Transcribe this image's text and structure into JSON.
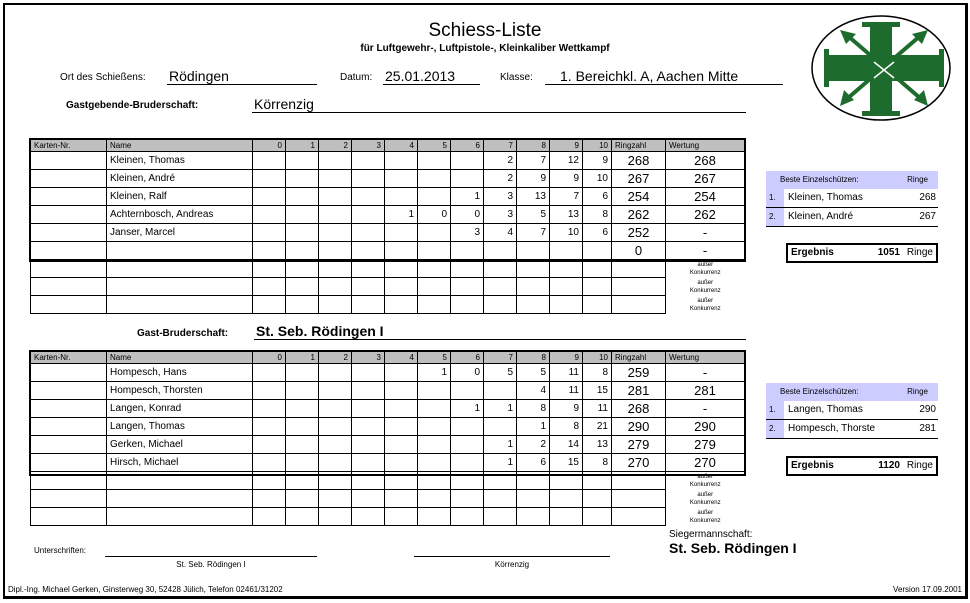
{
  "header": {
    "title": "Schiess-Liste",
    "subtitle": "für Luftgewehr-, Luftpistole-, Kleinkaliber Wettkampf",
    "ort_label": "Ort des Schießens:",
    "ort_value": "Rödingen",
    "datum_label": "Datum:",
    "datum_value": "25.01.2013",
    "klasse_label": "Klasse:",
    "klasse_value": "1. Bereichkl. A, Aachen Mitte"
  },
  "logo": {
    "icon": "green-cross-with-crossed-arrows-emblem",
    "color": "#1e6b2e"
  },
  "columns": [
    "Karten-Nr.",
    "Name",
    "0",
    "1",
    "2",
    "3",
    "4",
    "5",
    "6",
    "7",
    "8",
    "9",
    "10",
    "Ringzahl",
    "Wertung"
  ],
  "outside_competition_note": [
    "außer",
    "Konkurrenz"
  ],
  "team1": {
    "label": "Gastgebende-Bruderschaft:",
    "name": "Körrenzig",
    "rows": [
      {
        "karte": "",
        "name": "Kleinen, Thomas",
        "counts": [
          "",
          "",
          "",
          "",
          "",
          "",
          "",
          "2",
          "7",
          "12",
          "9"
        ],
        "ringzahl": "268",
        "wertung": "268"
      },
      {
        "karte": "",
        "name": "Kleinen, André",
        "counts": [
          "",
          "",
          "",
          "",
          "",
          "",
          "",
          "2",
          "9",
          "9",
          "10"
        ],
        "ringzahl": "267",
        "wertung": "267"
      },
      {
        "karte": "",
        "name": "Kleinen, Ralf",
        "counts": [
          "",
          "",
          "",
          "",
          "",
          "",
          "1",
          "3",
          "13",
          "7",
          "6"
        ],
        "ringzahl": "254",
        "wertung": "254"
      },
      {
        "karte": "",
        "name": "Achternbosch, Andreas",
        "counts": [
          "",
          "",
          "",
          "",
          "1",
          "0",
          "0",
          "3",
          "5",
          "13",
          "8"
        ],
        "ringzahl": "262",
        "wertung": "262"
      },
      {
        "karte": "",
        "name": "Janser, Marcel",
        "counts": [
          "",
          "",
          "",
          "",
          "",
          "",
          "3",
          "4",
          "7",
          "10",
          "6"
        ],
        "ringzahl": "252",
        "wertung": "-"
      },
      {
        "karte": "",
        "name": "",
        "counts": [
          "",
          "",
          "",
          "",
          "",
          "",
          "",
          "",
          "",
          "",
          ""
        ],
        "ringzahl": "0",
        "wertung": "-"
      }
    ],
    "best": {
      "header": "Beste Einzelschützen:",
      "header_unit": "Ringe",
      "rows": [
        {
          "rank": "1.",
          "name": "Kleinen, Thomas",
          "rings": "268"
        },
        {
          "rank": "2.",
          "name": "Kleinen, André",
          "rings": "267"
        }
      ]
    },
    "result": {
      "label": "Ergebnis",
      "value": "1051",
      "unit": "Ringe"
    }
  },
  "team2": {
    "label": "Gast-Bruderschaft:",
    "name": "St. Seb. Rödingen I",
    "rows": [
      {
        "karte": "",
        "name": "Hompesch, Hans",
        "counts": [
          "",
          "",
          "",
          "",
          "",
          "1",
          "0",
          "5",
          "5",
          "11",
          "8"
        ],
        "ringzahl": "259",
        "wertung": "-"
      },
      {
        "karte": "",
        "name": "Hompesch, Thorsten",
        "counts": [
          "",
          "",
          "",
          "",
          "",
          "",
          "",
          "",
          "4",
          "11",
          "15"
        ],
        "ringzahl": "281",
        "wertung": "281"
      },
      {
        "karte": "",
        "name": "Langen, Konrad",
        "counts": [
          "",
          "",
          "",
          "",
          "",
          "",
          "1",
          "1",
          "8",
          "9",
          "11"
        ],
        "ringzahl": "268",
        "wertung": "-"
      },
      {
        "karte": "",
        "name": "Langen, Thomas",
        "counts": [
          "",
          "",
          "",
          "",
          "",
          "",
          "",
          "",
          "1",
          "8",
          "21"
        ],
        "ringzahl": "290",
        "wertung": "290"
      },
      {
        "karte": "",
        "name": "Gerken, Michael",
        "counts": [
          "",
          "",
          "",
          "",
          "",
          "",
          "",
          "1",
          "2",
          "14",
          "13"
        ],
        "ringzahl": "279",
        "wertung": "279"
      },
      {
        "karte": "",
        "name": "Hirsch, Michael",
        "counts": [
          "",
          "",
          "",
          "",
          "",
          "",
          "",
          "1",
          "6",
          "15",
          "8"
        ],
        "ringzahl": "270",
        "wertung": "270"
      }
    ],
    "best": {
      "header": "Beste Einzelschützen:",
      "header_unit": "Ringe",
      "rows": [
        {
          "rank": "1.",
          "name": "Langen, Thomas",
          "rings": "290"
        },
        {
          "rank": "2.",
          "name": "Hompesch, Thorste",
          "rings": "281"
        }
      ]
    },
    "result": {
      "label": "Ergebnis",
      "value": "1120",
      "unit": "Ringe"
    }
  },
  "winner": {
    "label": "Siegermannschaft:",
    "name": "St. Seb. Rödingen I"
  },
  "signatures": {
    "label": "Unterschriften:",
    "left": "St. Seb. Rödingen I",
    "right": "Körrenzig"
  },
  "footer": {
    "author": "Dipl.-Ing. Michael Gerken, Ginsterweg 30, 52428 Jülich, Telefon 02461/31202",
    "version": "Version 17.09.2001"
  },
  "colors": {
    "header_gray": "#bfbfbf",
    "best_box": "#ccccff",
    "logo_green": "#1e6b2e"
  }
}
